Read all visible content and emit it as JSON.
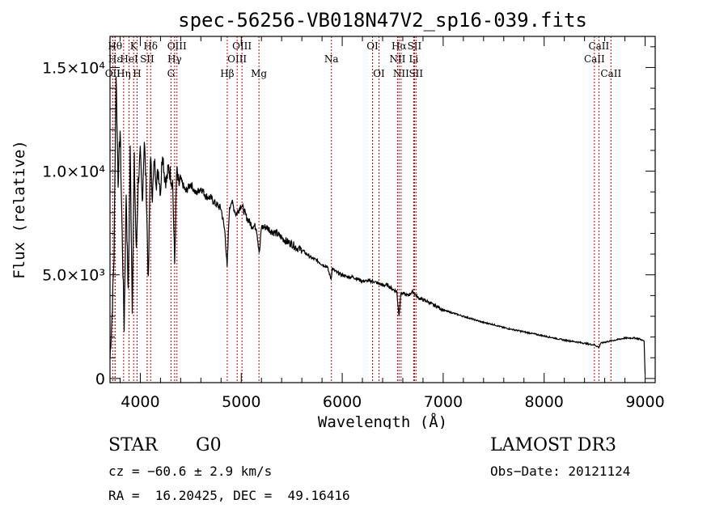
{
  "chart_data": {
    "type": "line",
    "title": "spec-56256-VB018N47V2_sp16-039.fits",
    "xlabel": "Wavelength (Å)",
    "ylabel": "Flux (relative)",
    "xlim": [
      3700,
      9100
    ],
    "ylim": [
      -200,
      16500
    ],
    "x_ticks": [
      {
        "value": 4000,
        "label": "4000"
      },
      {
        "value": 5000,
        "label": "5000"
      },
      {
        "value": 6000,
        "label": "6000"
      },
      {
        "value": 7000,
        "label": "7000"
      },
      {
        "value": 8000,
        "label": "8000"
      },
      {
        "value": 9000,
        "label": "9000"
      }
    ],
    "y_ticks": [
      {
        "value": 0,
        "label": "0"
      },
      {
        "value": 5000,
        "label": "5.0×10³"
      },
      {
        "value": 10000,
        "label": "1.0×10⁴"
      },
      {
        "value": 15000,
        "label": "1.5×10⁴"
      }
    ],
    "series": [
      {
        "name": "flux",
        "x": [
          3700,
          3720,
          3740,
          3760,
          3780,
          3800,
          3820,
          3840,
          3860,
          3880,
          3900,
          3920,
          3940,
          3960,
          3980,
          4000,
          4020,
          4040,
          4060,
          4080,
          4100,
          4120,
          4140,
          4160,
          4180,
          4200,
          4220,
          4240,
          4260,
          4280,
          4300,
          4320,
          4340,
          4360,
          4380,
          4400,
          4450,
          4500,
          4550,
          4600,
          4650,
          4700,
          4750,
          4800,
          4840,
          4860,
          4880,
          4900,
          4950,
          5000,
          5050,
          5100,
          5150,
          5180,
          5200,
          5250,
          5300,
          5350,
          5400,
          5450,
          5500,
          5550,
          5600,
          5650,
          5700,
          5750,
          5800,
          5850,
          5890,
          5900,
          5950,
          6000,
          6050,
          6100,
          6150,
          6200,
          6250,
          6300,
          6350,
          6400,
          6450,
          6500,
          6540,
          6563,
          6580,
          6600,
          6650,
          6700,
          6750,
          6800,
          6850,
          6900,
          6950,
          7000,
          7100,
          7200,
          7300,
          7400,
          7500,
          7600,
          7700,
          7800,
          7900,
          8000,
          8100,
          8200,
          8300,
          8400,
          8450,
          8500,
          8542,
          8560,
          8600,
          8650,
          8700,
          8750,
          8800,
          8850,
          8900,
          8950,
          8990,
          9000
        ],
        "y": [
          1000,
          3000,
          6000,
          14800,
          9500,
          12000,
          7000,
          2500,
          9000,
          4000,
          11000,
          3500,
          10500,
          6000,
          9500,
          10800,
          8500,
          11500,
          9000,
          4500,
          10800,
          8800,
          10500,
          9500,
          10000,
          9000,
          11000,
          9800,
          9500,
          10200,
          9800,
          9500,
          5500,
          10000,
          9300,
          9600,
          9000,
          9400,
          8900,
          9200,
          8800,
          8700,
          8400,
          8200,
          7000,
          5300,
          8000,
          8600,
          7900,
          8400,
          7800,
          7400,
          7300,
          6000,
          7300,
          7300,
          7100,
          7000,
          6800,
          6600,
          6500,
          6300,
          6200,
          6000,
          5800,
          5700,
          5500,
          5400,
          4800,
          5300,
          5100,
          5000,
          4900,
          4900,
          4800,
          4700,
          4700,
          4700,
          4600,
          4500,
          4500,
          4300,
          4200,
          3000,
          4100,
          4100,
          4000,
          4200,
          3900,
          3800,
          3700,
          3550,
          3450,
          3300,
          3150,
          3000,
          2850,
          2700,
          2600,
          2450,
          2350,
          2250,
          2150,
          2050,
          1950,
          1850,
          1780,
          1700,
          1650,
          1620,
          1500,
          1700,
          1750,
          1800,
          1850,
          1900,
          1950,
          1950,
          1950,
          1900,
          1800,
          200
        ]
      }
    ],
    "line_markers": [
      {
        "x": 3727,
        "label": "OII",
        "row": 2
      },
      {
        "x": 3750,
        "label": "Hθ",
        "row": 0
      },
      {
        "x": 3750,
        "label": "Hε",
        "row": 1
      },
      {
        "x": 3835,
        "label": "Hη",
        "row": 2
      },
      {
        "x": 3889,
        "label": "HeI",
        "row": 1
      },
      {
        "x": 3934,
        "label": "K",
        "row": 0
      },
      {
        "x": 3968,
        "label": "H",
        "row": 2
      },
      {
        "x": 4068,
        "label": "SII",
        "row": 1
      },
      {
        "x": 4102,
        "label": "Hδ",
        "row": 0
      },
      {
        "x": 4304,
        "label": "G",
        "row": 2
      },
      {
        "x": 4340,
        "label": "Hγ",
        "row": 1
      },
      {
        "x": 4363,
        "label": "OIII",
        "row": 0
      },
      {
        "x": 4861,
        "label": "Hβ",
        "row": 2
      },
      {
        "x": 4959,
        "label": "OIII",
        "row": 1
      },
      {
        "x": 5007,
        "label": "OIII",
        "row": 0
      },
      {
        "x": 5175,
        "label": "Mg",
        "row": 2
      },
      {
        "x": 5893,
        "label": "Na",
        "row": 1
      },
      {
        "x": 6300,
        "label": "OI",
        "row": 0
      },
      {
        "x": 6364,
        "label": "OI",
        "row": 2
      },
      {
        "x": 6548,
        "label": "NII",
        "row": 1
      },
      {
        "x": 6563,
        "label": "Hα",
        "row": 0
      },
      {
        "x": 6583,
        "label": "NII",
        "row": 2
      },
      {
        "x": 6708,
        "label": "Li",
        "row": 1
      },
      {
        "x": 6716,
        "label": "SII",
        "row": 0
      },
      {
        "x": 6731,
        "label": "SII",
        "row": 2
      },
      {
        "x": 8498,
        "label": "CaII",
        "row": 1
      },
      {
        "x": 8542,
        "label": "CaII",
        "row": 0
      },
      {
        "x": 8662,
        "label": "CaII",
        "row": 2
      }
    ],
    "marker_color": "#cc0000",
    "line_color": "#000000"
  },
  "info": {
    "class": "STAR",
    "subclass": "G0",
    "survey": "LAMOST DR3",
    "cz": "cz = −60.6 ± 2.9 km/s",
    "obs_date": "Obs−Date: 20121124",
    "coords": "RA =  16.20425, DEC =  49.16416"
  }
}
